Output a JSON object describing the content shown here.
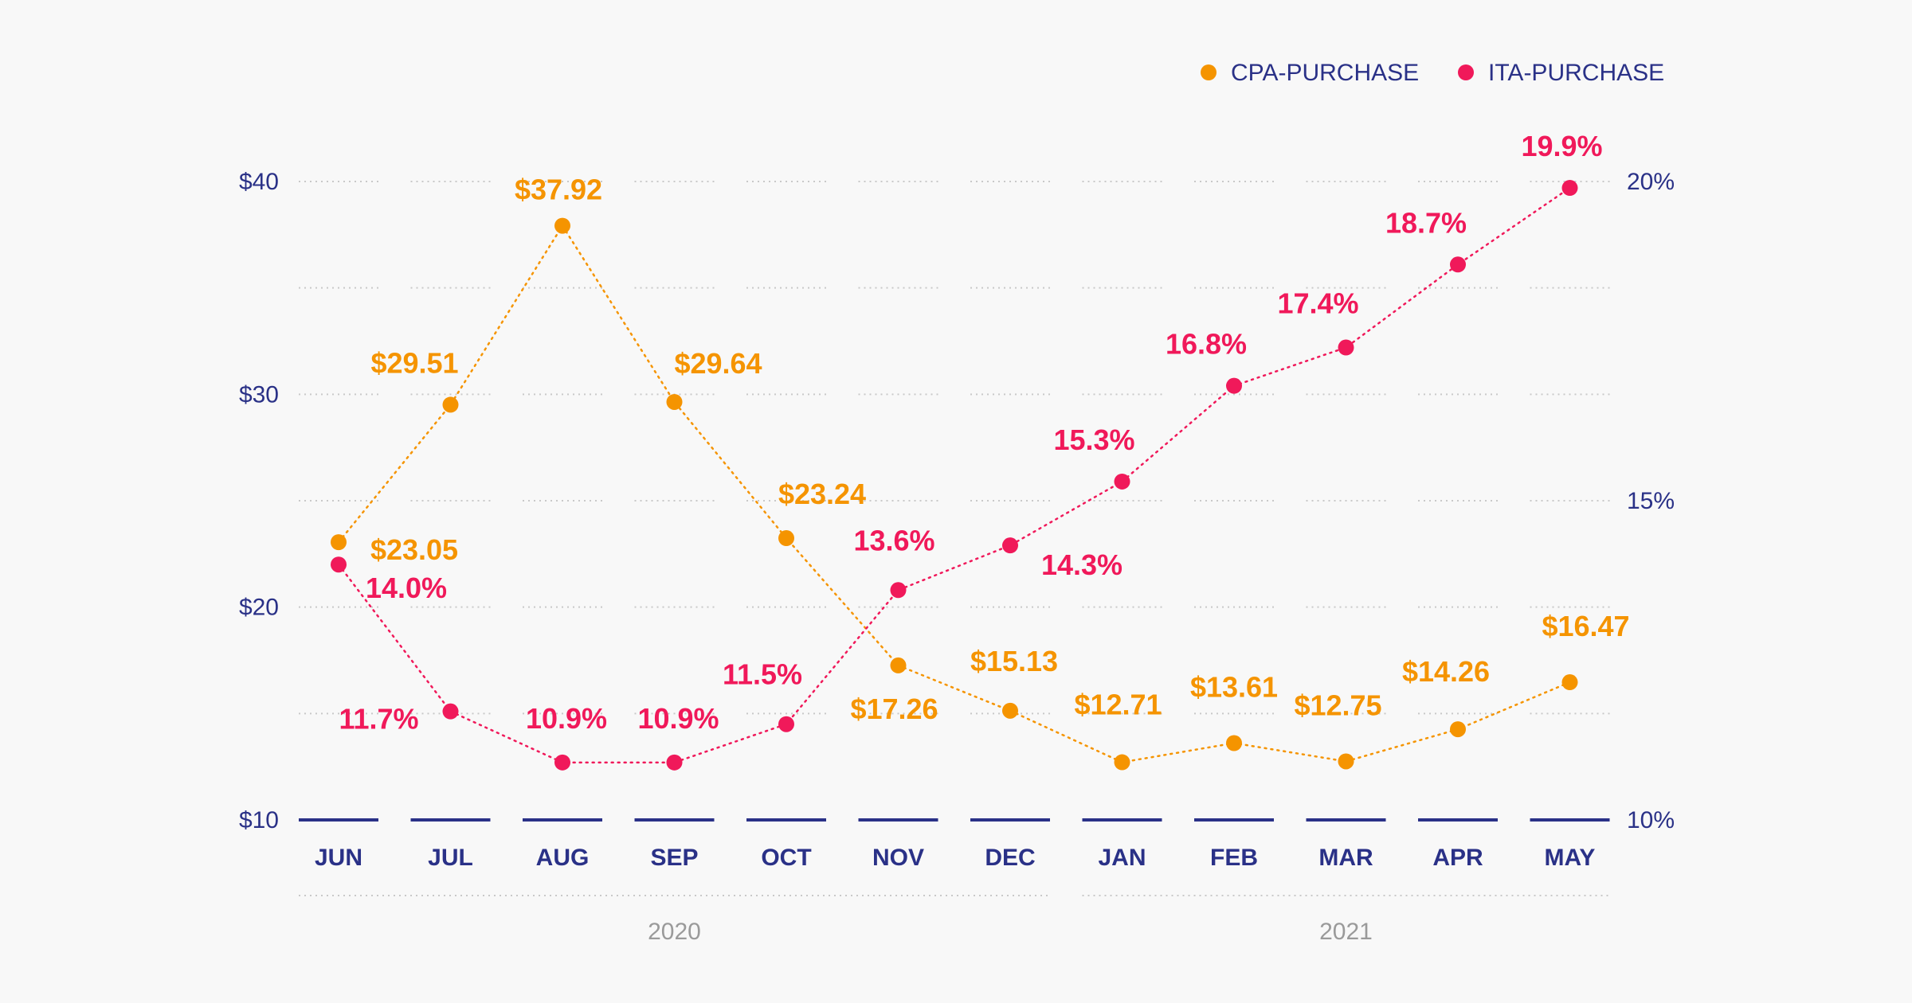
{
  "chart_data": {
    "type": "line",
    "title": "",
    "categories": [
      "JUN",
      "JUL",
      "AUG",
      "SEP",
      "OCT",
      "NOV",
      "DEC",
      "JAN",
      "FEB",
      "MAR",
      "APR",
      "MAY"
    ],
    "year_groups": [
      {
        "label": "2020",
        "months": [
          "JUN",
          "JUL",
          "AUG",
          "SEP",
          "OCT",
          "NOV",
          "DEC"
        ]
      },
      {
        "label": "2021",
        "months": [
          "JAN",
          "FEB",
          "MAR",
          "APR",
          "MAY"
        ]
      }
    ],
    "series": [
      {
        "name": "CPA-PURCHASE",
        "axis": "left",
        "color": "#f59400",
        "values": [
          23.05,
          29.51,
          37.92,
          29.64,
          23.24,
          17.26,
          15.13,
          12.71,
          13.61,
          12.75,
          14.26,
          16.47
        ],
        "labels": [
          "$23.05",
          "$29.51",
          "$37.92",
          "$29.64",
          "$23.24",
          "$17.26",
          "$15.13",
          "$12.71",
          "$13.61",
          "$12.75",
          "$14.26",
          "$16.47"
        ]
      },
      {
        "name": "ITA-PURCHASE",
        "axis": "right",
        "color": "#f0195a",
        "values": [
          14.0,
          11.7,
          10.9,
          10.9,
          11.5,
          13.6,
          14.3,
          15.3,
          16.8,
          17.4,
          18.7,
          19.9
        ],
        "labels": [
          "14.0%",
          "11.7%",
          "10.9%",
          "10.9%",
          "11.5%",
          "13.6%",
          "14.3%",
          "15.3%",
          "16.8%",
          "17.4%",
          "18.7%",
          "19.9%"
        ]
      }
    ],
    "left_axis": {
      "ylim": [
        10,
        40
      ],
      "ticks": [
        10,
        20,
        30,
        40
      ],
      "tick_labels": [
        "$10",
        "$20",
        "$30",
        "$40"
      ]
    },
    "right_axis": {
      "ylim": [
        10,
        20
      ],
      "ticks": [
        10,
        15,
        20
      ],
      "tick_labels": [
        "10%",
        "15%",
        "20%"
      ]
    },
    "xlabel": "",
    "ylabel": "",
    "grid": true,
    "legend": {
      "placement": "top-right",
      "entries": [
        "CPA-PURCHASE",
        "ITA-PURCHASE"
      ]
    },
    "axis_color": "#2a3187",
    "year_label_color": "#9a9a9a"
  }
}
